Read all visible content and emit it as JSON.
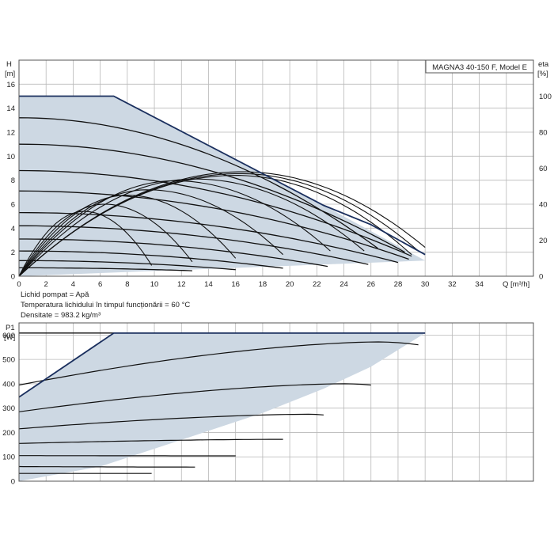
{
  "chart_data": [
    {
      "type": "line",
      "title": "MAGNA3 40-150 F, Model E",
      "ylabel": "H",
      "yunit": "[m]",
      "y2label": "eta",
      "y2unit": "[%]",
      "xlabel": "Q [m³/h]",
      "xlim": [
        0,
        38
      ],
      "ylim": [
        0,
        18
      ],
      "y2lim": [
        0,
        120
      ],
      "x_ticks": [
        0,
        2,
        4,
        6,
        8,
        10,
        12,
        14,
        16,
        18,
        20,
        22,
        24,
        26,
        28,
        30,
        32,
        34
      ],
      "y_ticks": [
        0,
        2,
        4,
        6,
        8,
        10,
        12,
        14,
        16
      ],
      "y2_ticks": [
        0,
        20,
        40,
        60,
        80,
        100
      ],
      "grid": true,
      "colors": {
        "envelope_fill": "#cdd8e3",
        "max_curve": "#1a2f5e",
        "curve": "#111111",
        "grid": "#b8b8b8"
      },
      "envelope": [
        [
          0,
          15
        ],
        [
          7,
          15
        ],
        [
          22.5,
          5.9
        ],
        [
          30,
          1.3
        ],
        [
          0,
          0
        ]
      ],
      "max_curve": [
        [
          0,
          15
        ],
        [
          7,
          15
        ],
        [
          22.5,
          5.9
        ],
        [
          26,
          4.3
        ],
        [
          30,
          1.8
        ]
      ],
      "head_curves": [
        {
          "h0": 13.2,
          "q_end": 26.5
        },
        {
          "h0": 11.0,
          "q_end": 28.5
        },
        {
          "h0": 8.8,
          "q_end": 29.0
        },
        {
          "h0": 7.1,
          "q_end": 28.8
        },
        {
          "h0": 5.3,
          "q_end": 28.0
        },
        {
          "h0": 4.2,
          "q_end": 25.8
        },
        {
          "h0": 3.1,
          "q_end": 22.8
        },
        {
          "h0": 2.1,
          "q_end": 19.5
        },
        {
          "h0": 1.3,
          "q_end": 16.0
        },
        {
          "h0": 0.7,
          "q_end": 12.8
        }
      ],
      "efficiency_curves": [
        {
          "q_end": 30.0,
          "peak_q": 16.5,
          "peak_eta": 58,
          "end_eta": 16
        },
        {
          "q_end": 29.5,
          "peak_q": 16.3,
          "peak_eta": 57,
          "end_eta": 14
        },
        {
          "q_end": 29.0,
          "peak_q": 16.0,
          "peak_eta": 56,
          "end_eta": 12
        },
        {
          "q_end": 25.5,
          "peak_q": 13.0,
          "peak_eta": 54,
          "end_eta": 14
        },
        {
          "q_end": 23.0,
          "peak_q": 11.5,
          "peak_eta": 53,
          "end_eta": 14
        },
        {
          "q_end": 19.5,
          "peak_q": 9.5,
          "peak_eta": 48,
          "end_eta": 12
        },
        {
          "q_end": 16.0,
          "peak_q": 8.0,
          "peak_eta": 45,
          "end_eta": 10
        },
        {
          "q_end": 12.8,
          "peak_q": 6.3,
          "peak_eta": 40,
          "end_eta": 8
        },
        {
          "q_end": 9.8,
          "peak_q": 4.8,
          "peak_eta": 36,
          "end_eta": 6
        }
      ]
    },
    {
      "type": "line",
      "ylabel": "P1",
      "yunit": "[W]",
      "xlim": [
        0,
        38
      ],
      "ylim": [
        0,
        650
      ],
      "y_ticks": [
        0,
        100,
        200,
        300,
        400,
        500,
        600
      ],
      "grid": true,
      "envelope": [
        [
          0,
          345
        ],
        [
          7,
          608
        ],
        [
          30,
          608
        ],
        [
          26,
          470
        ],
        [
          22.5,
          380
        ],
        [
          18,
          280
        ],
        [
          12,
          170
        ],
        [
          6,
          60
        ],
        [
          0,
          0
        ]
      ],
      "max_curve": [
        [
          0,
          345
        ],
        [
          7,
          608
        ],
        [
          30,
          608
        ]
      ],
      "power_curves": [
        {
          "p0": 608,
          "x_end": 10.5,
          "p_end": 608
        },
        {
          "p0": 608,
          "x_end": 15.0,
          "p_end": 608
        },
        {
          "p0": 395,
          "x_end": 29.5,
          "p_end": 560,
          "peak_x": 26.5,
          "peak_p": 572
        },
        {
          "p0": 285,
          "x_end": 26.0,
          "p_end": 395,
          "peak_x": 24.0,
          "peak_p": 400
        },
        {
          "p0": 215,
          "x_end": 22.5,
          "p_end": 272,
          "peak_x": 21.5,
          "peak_p": 275
        },
        {
          "p0": 155,
          "x_end": 19.5,
          "p_end": 172
        },
        {
          "p0": 105,
          "x_end": 16.0,
          "p_end": 104
        },
        {
          "p0": 60,
          "x_end": 13.0,
          "p_end": 58
        },
        {
          "p0": 32,
          "x_end": 9.8,
          "p_end": 32
        }
      ]
    }
  ],
  "notes": [
    "Lichid pompat = Apă",
    "Temperatura lichidului în timpul funcționării = 60 °C",
    "Densitate = 983.2 kg/m³"
  ]
}
